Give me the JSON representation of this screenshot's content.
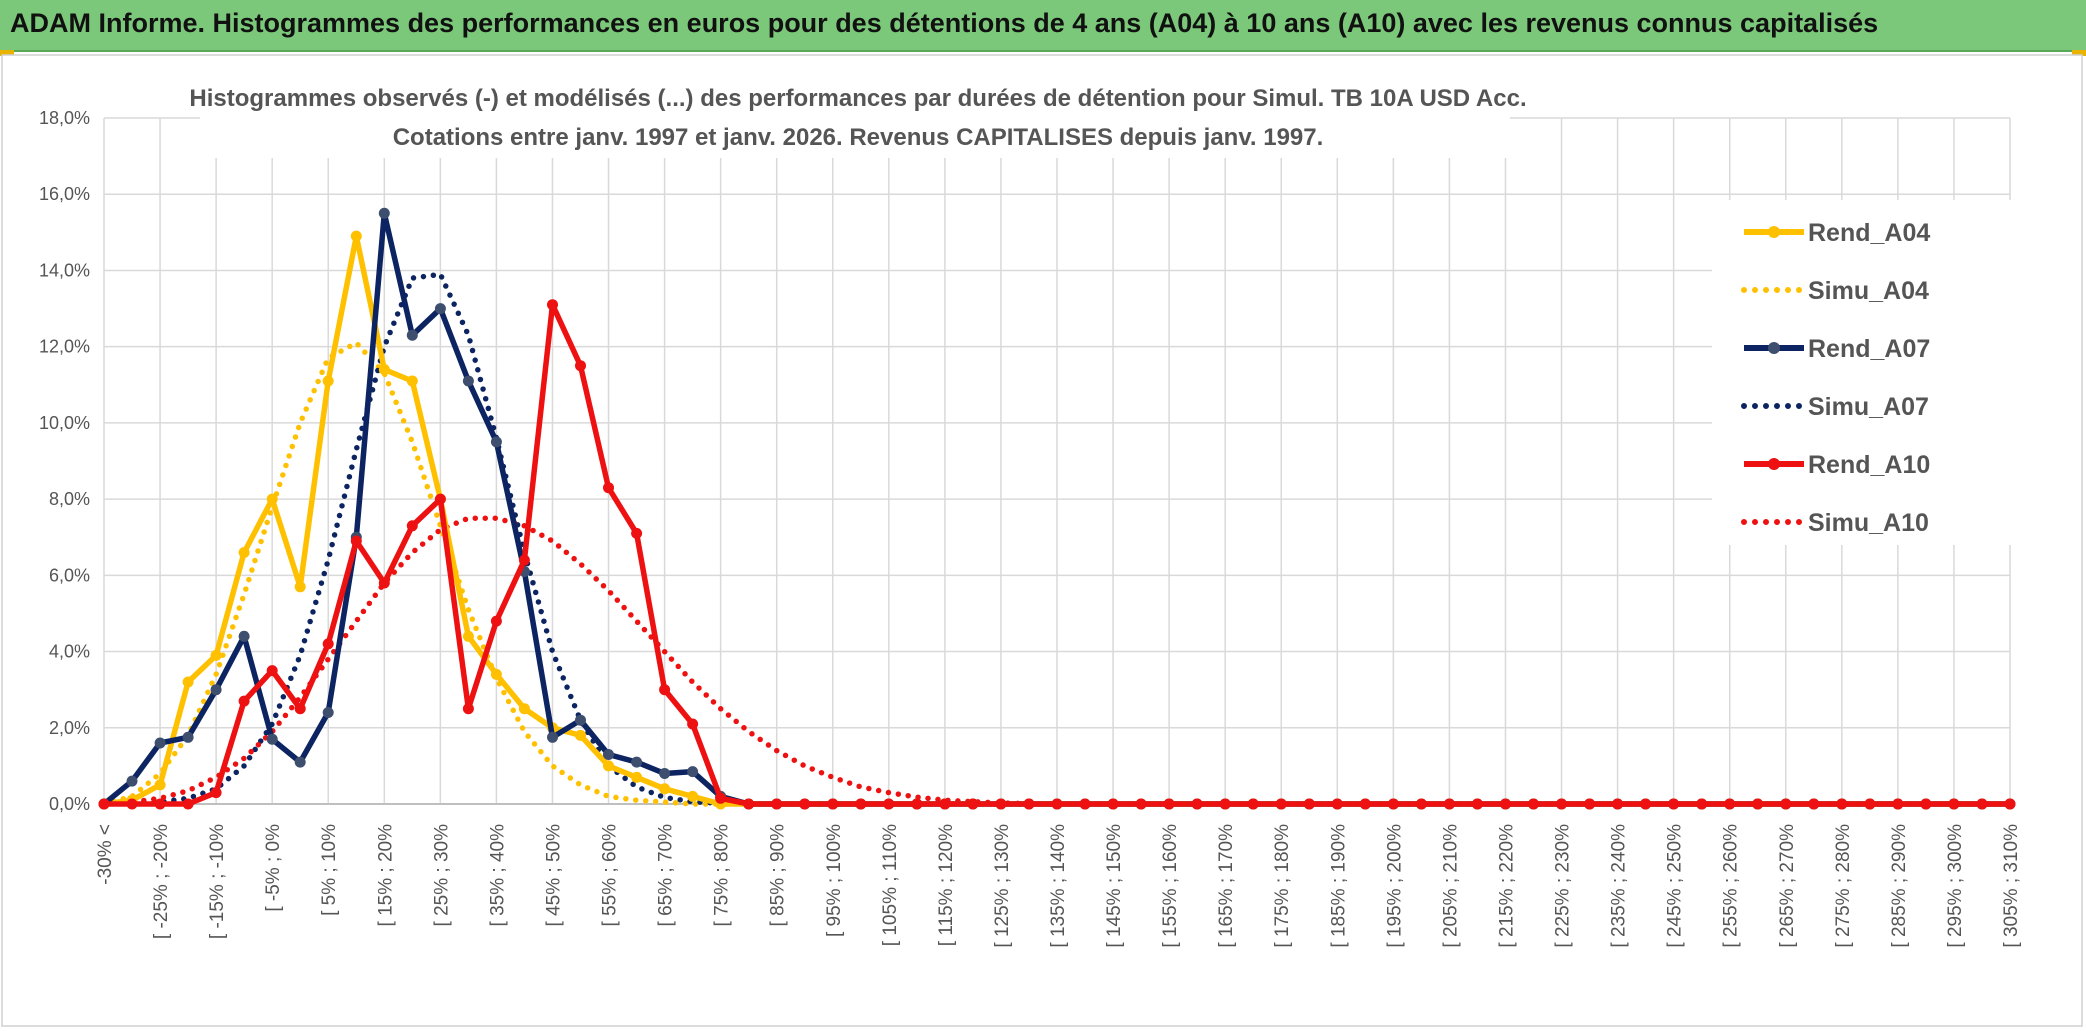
{
  "banner": {
    "title": "ADAM Informe. Histogrammes des performances en euros pour des détentions de 4 ans (A04) à 10 ans (A10) avec les revenus connus capitalisés"
  },
  "colors": {
    "banner_bg": "#7cc87a",
    "yellow": "#ffc000",
    "navy": "#0c2461",
    "navy_marker": "#3d4e6e",
    "red": "#ee1111",
    "grid": "#d9d9d9"
  },
  "chart_data": {
    "type": "line",
    "title_line1": "Histogrammes observés (-) et modélisés (...) des performances par durées de détention pour Simul. TB 10A USD Acc.",
    "title_line2": "Cotations entre janv. 1997 et janv. 2026. Revenus CAPITALISES depuis janv. 1997.",
    "ylim": [
      0,
      18
    ],
    "yticks": [
      "0,0%",
      "2,0%",
      "4,0%",
      "6,0%",
      "8,0%",
      "10,0%",
      "12,0%",
      "14,0%",
      "16,0%",
      "18,0%"
    ],
    "x_labels": [
      "-30% <",
      "[ -25% ; -20%",
      "[ -15% ; -10%",
      "[ -5% ; 0%",
      "[ 5% ; 10%",
      "[ 15% ; 20%",
      "[ 25% ; 30%",
      "[ 35% ; 40%",
      "[ 45% ; 50%",
      "[ 55% ; 60%",
      "[ 65% ; 70%",
      "[ 75% ; 80%",
      "[ 85% ; 90%",
      "[ 95% ; 100%",
      "[ 105% ; 110%",
      "[ 115% ; 120%",
      "[ 125% ; 130%",
      "[ 135% ; 140%",
      "[ 145% ; 150%",
      "[ 155% ; 160%",
      "[ 165% ; 170%",
      "[ 175% ; 180%",
      "[ 185% ; 190%",
      "[ 195% ; 200%",
      "[ 205% ; 210%",
      "[ 215% ; 220%",
      "[ 225% ; 230%",
      "[ 235% ; 240%",
      "[ 245% ; 250%",
      "[ 255% ; 260%",
      "[ 265% ; 270%",
      "[ 275% ; 280%",
      "[ 285% ; 290%",
      "[ 295% ; 300%",
      "[ 305% ; 310%"
    ],
    "n_points": 69,
    "series": [
      {
        "name": "Rend_A04",
        "style": "solid",
        "color": "#ffc000",
        "values": [
          0,
          0.1,
          0.5,
          3.2,
          3.9,
          6.6,
          8.0,
          5.7,
          11.1,
          14.9,
          11.4,
          11.1,
          8.0,
          4.4,
          3.4,
          2.5,
          2.0,
          1.8,
          1.0,
          0.7,
          0.4,
          0.2,
          0,
          0,
          0,
          0,
          0,
          0,
          0,
          0,
          0,
          0,
          0,
          0,
          0,
          0,
          0,
          0,
          0,
          0,
          0,
          0,
          0,
          0,
          0,
          0,
          0,
          0,
          0,
          0,
          0,
          0,
          0,
          0,
          0,
          0,
          0,
          0,
          0,
          0,
          0,
          0,
          0,
          0,
          0,
          0,
          0,
          0,
          0
        ]
      },
      {
        "name": "Simu_A04",
        "style": "dotted",
        "color": "#ffc000",
        "values": [
          0,
          0.2,
          0.8,
          1.8,
          3.4,
          5.5,
          7.8,
          10.0,
          11.7,
          12.1,
          11.3,
          9.5,
          7.3,
          5.1,
          3.3,
          1.9,
          1.0,
          0.5,
          0.2,
          0.1,
          0.05,
          0,
          0,
          0,
          0,
          0,
          0,
          0,
          0,
          0,
          0,
          0,
          0,
          0,
          0,
          0,
          0,
          0,
          0,
          0,
          0,
          0,
          0,
          0,
          0,
          0,
          0,
          0,
          0,
          0,
          0,
          0,
          0,
          0,
          0,
          0,
          0,
          0,
          0,
          0,
          0,
          0,
          0,
          0,
          0,
          0,
          0,
          0,
          0
        ]
      },
      {
        "name": "Rend_A07",
        "style": "solid",
        "color": "#0c2461",
        "values": [
          0,
          0.6,
          1.6,
          1.75,
          3.0,
          4.4,
          1.7,
          1.1,
          2.4,
          7.0,
          15.5,
          12.3,
          13.0,
          11.1,
          9.5,
          6.1,
          1.75,
          2.2,
          1.3,
          1.1,
          0.8,
          0.85,
          0.2,
          0,
          0,
          0,
          0,
          0,
          0,
          0,
          0,
          0,
          0,
          0,
          0,
          0,
          0,
          0,
          0,
          0,
          0,
          0,
          0,
          0,
          0,
          0,
          0,
          0,
          0,
          0,
          0,
          0,
          0,
          0,
          0,
          0,
          0,
          0,
          0,
          0,
          0,
          0,
          0,
          0,
          0,
          0,
          0,
          0,
          0
        ]
      },
      {
        "name": "Simu_A07",
        "style": "dotted",
        "color": "#0c2461",
        "values": [
          0,
          0.02,
          0.05,
          0.15,
          0.4,
          1.0,
          2.1,
          3.9,
          6.4,
          9.3,
          12.0,
          13.8,
          13.9,
          12.3,
          9.6,
          6.6,
          4.0,
          2.2,
          1.0,
          0.45,
          0.17,
          0.06,
          0.02,
          0,
          0,
          0,
          0,
          0,
          0,
          0,
          0,
          0,
          0,
          0,
          0,
          0,
          0,
          0,
          0,
          0,
          0,
          0,
          0,
          0,
          0,
          0,
          0,
          0,
          0,
          0,
          0,
          0,
          0,
          0,
          0,
          0,
          0,
          0,
          0,
          0,
          0,
          0,
          0,
          0,
          0,
          0,
          0,
          0,
          0
        ]
      },
      {
        "name": "Rend_A10",
        "style": "solid",
        "color": "#ee1111",
        "values": [
          0,
          0,
          0,
          0,
          0.3,
          2.7,
          3.5,
          2.5,
          4.2,
          6.9,
          5.8,
          7.3,
          8.0,
          2.5,
          4.8,
          6.4,
          13.1,
          11.5,
          8.3,
          7.1,
          3.0,
          2.1,
          0.15,
          0,
          0,
          0,
          0,
          0,
          0,
          0,
          0,
          0,
          0,
          0,
          0,
          0,
          0,
          0,
          0,
          0,
          0,
          0,
          0,
          0,
          0,
          0,
          0,
          0,
          0,
          0,
          0,
          0,
          0,
          0,
          0,
          0,
          0,
          0,
          0,
          0,
          0,
          0,
          0,
          0,
          0,
          0,
          0,
          0,
          0
        ]
      },
      {
        "name": "Simu_A10",
        "style": "dotted",
        "color": "#ee1111",
        "values": [
          0,
          0.05,
          0.15,
          0.35,
          0.7,
          1.2,
          1.9,
          2.8,
          3.8,
          4.8,
          5.8,
          6.6,
          7.2,
          7.5,
          7.5,
          7.3,
          6.9,
          6.3,
          5.6,
          4.8,
          4.0,
          3.2,
          2.5,
          1.9,
          1.4,
          1.0,
          0.7,
          0.45,
          0.3,
          0.18,
          0.1,
          0.06,
          0.03,
          0.01,
          0,
          0,
          0,
          0,
          0,
          0,
          0,
          0,
          0,
          0,
          0,
          0,
          0,
          0,
          0,
          0,
          0,
          0,
          0,
          0,
          0,
          0,
          0,
          0,
          0,
          0,
          0,
          0,
          0,
          0,
          0,
          0,
          0,
          0,
          0
        ]
      }
    ],
    "legend": [
      "Rend_A04",
      "Simu_A04",
      "Rend_A07",
      "Simu_A07",
      "Rend_A10",
      "Simu_A10"
    ],
    "legend_position": "right"
  }
}
